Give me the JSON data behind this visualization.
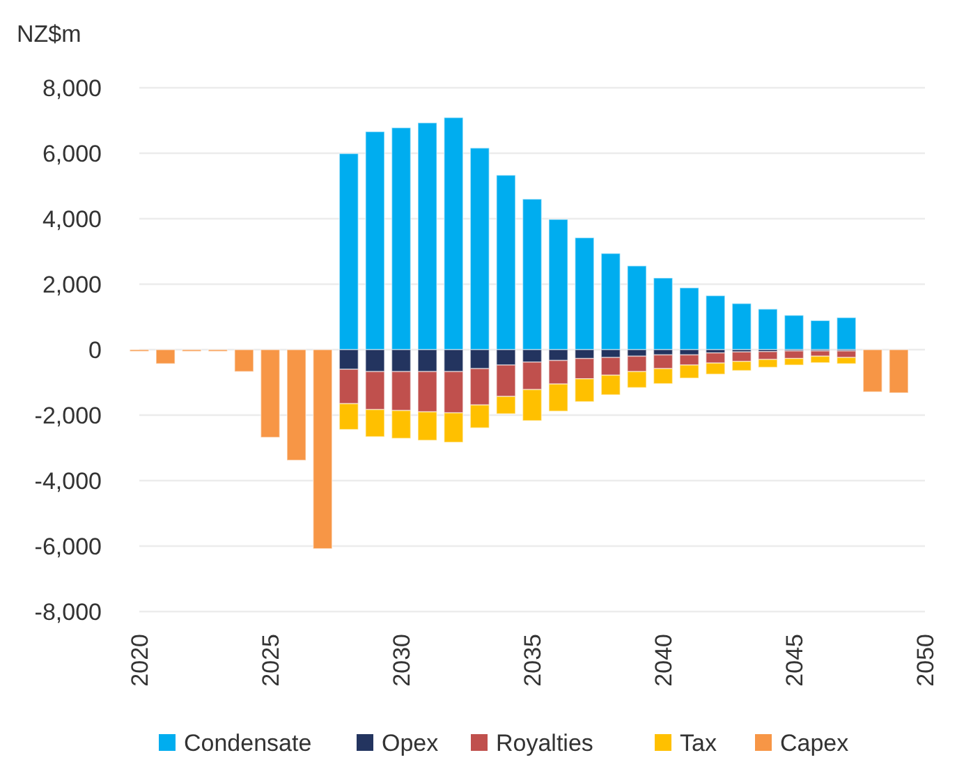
{
  "chart_data": {
    "type": "bar",
    "stacked": true,
    "ylabel": "NZ$m",
    "x": [
      2020,
      2021,
      2022,
      2023,
      2024,
      2025,
      2026,
      2027,
      2028,
      2029,
      2030,
      2031,
      2032,
      2033,
      2034,
      2035,
      2036,
      2037,
      2038,
      2039,
      2040,
      2041,
      2042,
      2043,
      2044,
      2045,
      2046,
      2047,
      2048,
      2049
    ],
    "series": [
      {
        "name": "Condensate",
        "color": "#00adef",
        "values": [
          null,
          null,
          null,
          null,
          null,
          null,
          null,
          null,
          5990,
          6660,
          6780,
          6930,
          7090,
          6160,
          5330,
          4600,
          3980,
          3420,
          2940,
          2560,
          2190,
          1890,
          1650,
          1410,
          1240,
          1050,
          890,
          980,
          null,
          null
        ]
      },
      {
        "name": "Opex",
        "color": "#23345f",
        "values": [
          null,
          null,
          null,
          null,
          null,
          null,
          null,
          null,
          -600,
          -670,
          -670,
          -670,
          -670,
          -580,
          -470,
          -380,
          -330,
          -270,
          -240,
          -200,
          -160,
          -160,
          -100,
          -70,
          -60,
          -40,
          -40,
          -40,
          null,
          null
        ]
      },
      {
        "name": "Royalties",
        "color": "#c0504d",
        "values": [
          null,
          null,
          null,
          null,
          null,
          null,
          null,
          null,
          -1050,
          -1160,
          -1190,
          -1230,
          -1260,
          -1110,
          -960,
          -840,
          -720,
          -620,
          -540,
          -470,
          -420,
          -310,
          -310,
          -290,
          -240,
          -230,
          -160,
          -200,
          null,
          null
        ]
      },
      {
        "name": "Tax",
        "color": "#ffc000",
        "values": [
          null,
          null,
          null,
          null,
          null,
          null,
          null,
          null,
          -790,
          -830,
          -850,
          -870,
          -900,
          -700,
          -530,
          -950,
          -830,
          -700,
          -600,
          -490,
          -460,
          -400,
          -340,
          -280,
          -240,
          -200,
          -200,
          -190,
          null,
          null
        ]
      },
      {
        "name": "Capex",
        "color": "#f79646",
        "values": [
          -50,
          -430,
          -50,
          -50,
          -670,
          -2680,
          -3380,
          -6080,
          null,
          null,
          null,
          null,
          null,
          null,
          null,
          null,
          null,
          null,
          null,
          null,
          null,
          null,
          null,
          null,
          null,
          null,
          null,
          null,
          -1290,
          -1320
        ]
      }
    ],
    "xlim": [
      2020,
      2050
    ],
    "xticks": [
      2020,
      2025,
      2030,
      2035,
      2040,
      2045,
      2050
    ],
    "ylim": [
      -8000,
      8000
    ],
    "yticks": [
      {
        "value": -8000,
        "label": "-8,000"
      },
      {
        "value": -6000,
        "label": "-6,000"
      },
      {
        "value": -4000,
        "label": "-4,000"
      },
      {
        "value": -2000,
        "label": "-2,000"
      },
      0,
      {
        "value": 2000,
        "label": "2,000"
      },
      {
        "value": 4000,
        "label": "4,000"
      },
      {
        "value": 6000,
        "label": "6,000"
      },
      {
        "value": 8000,
        "label": "8,000"
      }
    ],
    "grid": "y",
    "legend": "bottom"
  }
}
